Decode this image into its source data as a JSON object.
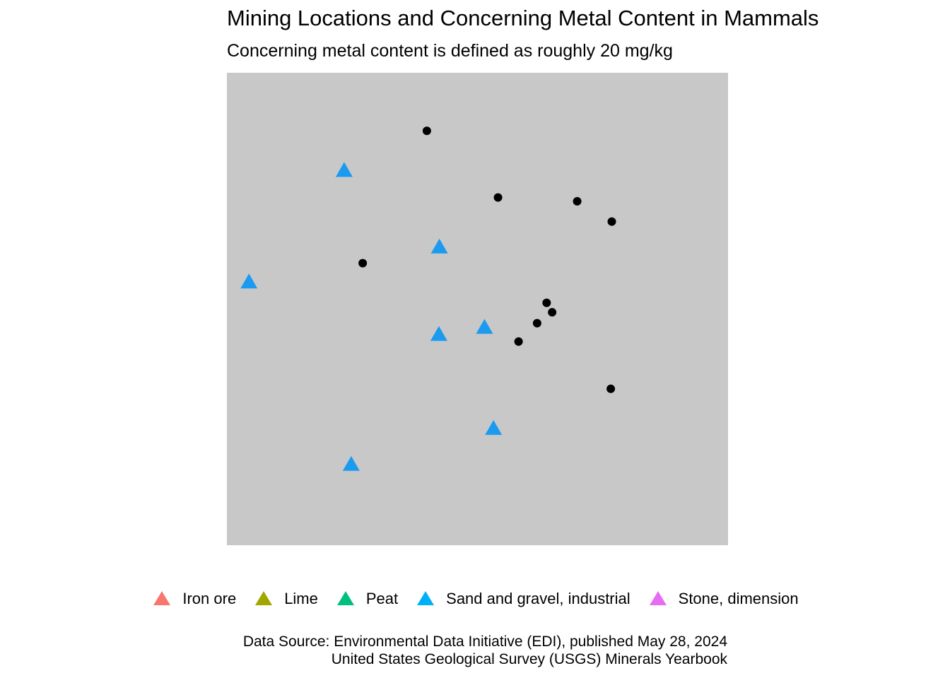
{
  "title": "Mining Locations and Concerning Metal Content in Mammals",
  "subtitle": "Concerning metal content is defined as roughly 20 mg/kg",
  "caption_line1": "Data Source: Environmental Data Initiative (EDI), published May 28, 2024",
  "caption_line2": "United States Geological Survey (USGS) Minerals Yearbook",
  "panel_color": "#c8c8c8",
  "legend": {
    "placement": "bottom",
    "marker": "triangle",
    "entries": [
      {
        "label": "Iron ore",
        "color": "#f8766d"
      },
      {
        "label": "Lime",
        "color": "#a3a500"
      },
      {
        "label": "Peat",
        "color": "#00bf7d"
      },
      {
        "label": "Sand and gravel, industrial",
        "color": "#00b0f6"
      },
      {
        "label": "Stone, dimension",
        "color": "#e76bf3"
      }
    ]
  },
  "chart_data": {
    "type": "scatter",
    "grid": false,
    "axes_visible": false,
    "xlim": [
      0,
      100
    ],
    "ylim": [
      0,
      100
    ],
    "series": [
      {
        "name": "Sand and gravel, industrial",
        "marker": "triangle",
        "color": "#1a9bef",
        "points": [
          {
            "x": 23.4,
            "y": 79.3
          },
          {
            "x": 4.4,
            "y": 55.7
          },
          {
            "x": 42.4,
            "y": 63.1
          },
          {
            "x": 42.3,
            "y": 44.6
          },
          {
            "x": 51.4,
            "y": 46.1
          },
          {
            "x": 53.2,
            "y": 24.7
          },
          {
            "x": 24.8,
            "y": 17.1
          }
        ]
      },
      {
        "marker": "circle",
        "color": "#000000",
        "points": [
          {
            "x": 39.9,
            "y": 87.7
          },
          {
            "x": 54.1,
            "y": 73.6
          },
          {
            "x": 69.9,
            "y": 72.8
          },
          {
            "x": 76.8,
            "y": 68.5
          },
          {
            "x": 27.1,
            "y": 59.7
          },
          {
            "x": 63.8,
            "y": 51.3
          },
          {
            "x": 64.9,
            "y": 49.3
          },
          {
            "x": 61.9,
            "y": 47.0
          },
          {
            "x": 58.2,
            "y": 43.1
          },
          {
            "x": 76.6,
            "y": 33.1
          }
        ]
      }
    ]
  }
}
